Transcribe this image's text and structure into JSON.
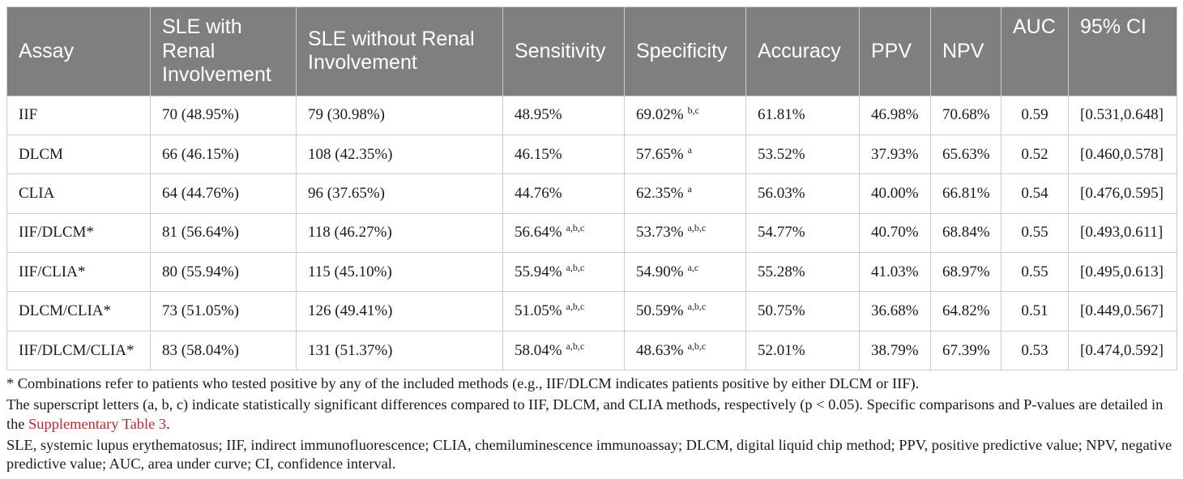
{
  "table": {
    "columns": [
      "Assay",
      "SLE with Renal Involvement",
      "SLE without Renal Involvement",
      "Sensitivity",
      "Specificity",
      "Accuracy",
      "PPV",
      "NPV",
      "AUC",
      "95% CI"
    ],
    "rows": [
      {
        "assay": "IIF",
        "sle_with_renal": "70 (48.95%)",
        "sle_without_renal": "79 (30.98%)",
        "sensitivity": {
          "value": "48.95%"
        },
        "specificity": {
          "value": "69.02%",
          "sup": "b,c"
        },
        "accuracy": "61.81%",
        "ppv": "46.98%",
        "npv": "70.68%",
        "auc": "0.59",
        "ci95": "[0.531,0.648]"
      },
      {
        "assay": "DLCM",
        "sle_with_renal": "66 (46.15%)",
        "sle_without_renal": "108 (42.35%)",
        "sensitivity": {
          "value": "46.15%"
        },
        "specificity": {
          "value": "57.65%",
          "sup": "a"
        },
        "accuracy": "53.52%",
        "ppv": "37.93%",
        "npv": "65.63%",
        "auc": "0.52",
        "ci95": "[0.460,0.578]"
      },
      {
        "assay": "CLIA",
        "sle_with_renal": "64 (44.76%)",
        "sle_without_renal": "96 (37.65%)",
        "sensitivity": {
          "value": "44.76%"
        },
        "specificity": {
          "value": "62.35%",
          "sup": "a"
        },
        "accuracy": "56.03%",
        "ppv": "40.00%",
        "npv": "66.81%",
        "auc": "0.54",
        "ci95": "[0.476,0.595]"
      },
      {
        "assay": "IIF/DLCM*",
        "sle_with_renal": "81 (56.64%)",
        "sle_without_renal": "118 (46.27%)",
        "sensitivity": {
          "value": "56.64%",
          "sup": "a,b,c"
        },
        "specificity": {
          "value": "53.73%",
          "sup": "a,b,c"
        },
        "accuracy": "54.77%",
        "ppv": "40.70%",
        "npv": "68.84%",
        "auc": "0.55",
        "ci95": "[0.493,0.611]"
      },
      {
        "assay": "IIF/CLIA*",
        "sle_with_renal": "80 (55.94%)",
        "sle_without_renal": "115 (45.10%)",
        "sensitivity": {
          "value": "55.94%",
          "sup": "a,b,c"
        },
        "specificity": {
          "value": "54.90%",
          "sup": "a,c"
        },
        "accuracy": "55.28%",
        "ppv": "41.03%",
        "npv": "68.97%",
        "auc": "0.55",
        "ci95": "[0.495,0.613]"
      },
      {
        "assay": "DLCM/CLIA*",
        "sle_with_renal": "73 (51.05%)",
        "sle_without_renal": "126 (49.41%)",
        "sensitivity": {
          "value": "51.05%",
          "sup": "a,b,c"
        },
        "specificity": {
          "value": "50.59%",
          "sup": "a,b,c"
        },
        "accuracy": "50.75%",
        "ppv": "36.68%",
        "npv": "64.82%",
        "auc": "0.51",
        "ci95": "[0.449,0.567]"
      },
      {
        "assay": "IIF/DLCM/CLIA*",
        "sle_with_renal": "83 (58.04%)",
        "sle_without_renal": "131 (51.37%)",
        "sensitivity": {
          "value": "58.04%",
          "sup": "a,b,c"
        },
        "specificity": {
          "value": "48.63%",
          "sup": "a,b,c"
        },
        "accuracy": "52.01%",
        "ppv": "38.79%",
        "npv": "67.39%",
        "auc": "0.53",
        "ci95": "[0.474,0.592]"
      }
    ]
  },
  "footnotes": {
    "combinations": "* Combinations refer to patients who tested positive by any of the included methods (e.g., IIF/DLCM indicates patients positive by either DLCM or IIF).",
    "superscripts": {
      "line_1": "The superscript letters (a, b, c) indicate statistically significant differences compared to IIF, DLCM, and CLIA methods, respectively (p < 0.05). Specific comparisons and P-values are detailed in",
      "line_2_lead": "the ",
      "link_text": "Supplementary Table 3",
      "line_2_end": "."
    },
    "abbreviations": {
      "line_1": "SLE, systemic lupus erythematosus; IIF, indirect immunofluorescence; CLIA, chemiluminescence immunoassay; DLCM, digital liquid chip method; PPV, positive predictive value; NPV, negative",
      "line_2": "predictive value; AUC, area under curve; CI, confidence interval."
    }
  },
  "colors": {
    "header_background": "#7f7f7f",
    "header_text": "#ffffff",
    "cell_border": "#cccccc",
    "body_text": "#1a1a1a",
    "link": "#c4262e"
  }
}
